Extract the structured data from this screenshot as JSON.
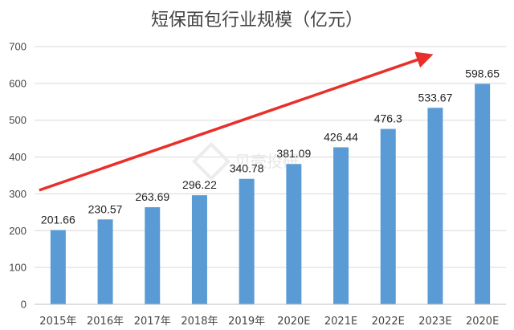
{
  "chart_data": {
    "type": "bar",
    "title": "短保面包行业规模（亿元）",
    "xlabel": "",
    "ylabel": "",
    "ylim": [
      0,
      700
    ],
    "yticks": [
      0,
      100,
      200,
      300,
      400,
      500,
      600,
      700
    ],
    "grid": true,
    "categories": [
      "2015年",
      "2016年",
      "2017年",
      "2018年",
      "2019年",
      "2020E",
      "2021E",
      "2022E",
      "2023E",
      "2020E"
    ],
    "values": [
      201.66,
      230.57,
      263.69,
      296.22,
      340.78,
      381.09,
      426.44,
      476.3,
      533.67,
      598.65
    ],
    "value_labels": [
      "201.66",
      "230.57",
      "263.69",
      "296.22",
      "340.78",
      "381.09",
      "426.44",
      "476.3",
      "533.67",
      "598.65"
    ],
    "bar_color": "#5b9bd5",
    "trend_arrow": {
      "color": "#e8302a",
      "from": [
        -0.4,
        310
      ],
      "to": [
        7.8,
        672
      ]
    },
    "watermark": "贝壳投研"
  }
}
